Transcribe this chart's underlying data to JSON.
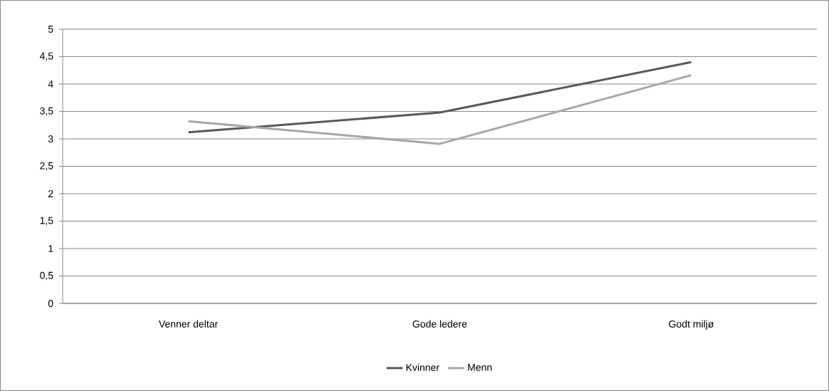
{
  "chart_data": {
    "type": "line",
    "categories": [
      "Venner deltar",
      "Gode ledere",
      "Godt miljø"
    ],
    "series": [
      {
        "name": "Kvinner",
        "color": "#595959",
        "values": [
          3.12,
          3.48,
          4.4
        ]
      },
      {
        "name": "Menn",
        "color": "#a6a6a6",
        "values": [
          3.32,
          2.91,
          4.16
        ]
      }
    ],
    "ylim": [
      0,
      5
    ],
    "yticks": [
      0,
      {
        "value": 0.5,
        "label": "0,5"
      },
      1,
      {
        "value": 1.5,
        "label": "1,5"
      },
      2,
      {
        "value": 2.5,
        "label": "2,5"
      },
      3,
      {
        "value": 3.5,
        "label": "3,5"
      },
      4,
      {
        "value": 4.5,
        "label": "4,5"
      },
      5
    ],
    "grid": "y",
    "legend": "bottom"
  }
}
